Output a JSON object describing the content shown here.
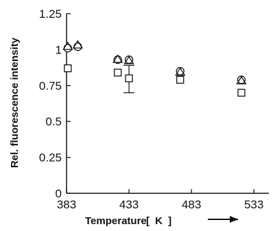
{
  "chart_data": {
    "type": "scatter",
    "title": "",
    "xlabel": "Temperature",
    "xunit": "[ K ]",
    "ylabel": "Rel.  fluorescence  intensity",
    "xlim": [
      383,
      545
    ],
    "ylim": [
      0,
      1.25
    ],
    "xticks": [
      383,
      433,
      483,
      533
    ],
    "xtick_labels": [
      "383",
      "433",
      "483",
      "533"
    ],
    "yticks": [
      0,
      0.25,
      0.5,
      0.75,
      1,
      1.25
    ],
    "ytick_labels": [
      "0",
      "0.25",
      "0.5",
      "0.75",
      "1",
      "1.25"
    ],
    "grid": false,
    "legend": "none",
    "series": [
      {
        "marker": "circle",
        "points": [
          {
            "x": 384,
            "y": 1.01
          },
          {
            "x": 392,
            "y": 1.02
          },
          {
            "x": 424,
            "y": 0.93
          },
          {
            "x": 433,
            "y": 0.93
          },
          {
            "x": 474,
            "y": 0.85
          },
          {
            "x": 523,
            "y": 0.79
          }
        ]
      },
      {
        "marker": "triangle",
        "points": [
          {
            "x": 384,
            "y": 1.02
          },
          {
            "x": 392,
            "y": 1.03
          },
          {
            "x": 424,
            "y": 0.93
          },
          {
            "x": 433,
            "y": 0.92
          },
          {
            "x": 474,
            "y": 0.84
          },
          {
            "x": 523,
            "y": 0.78
          }
        ]
      },
      {
        "marker": "square",
        "points": [
          {
            "x": 384,
            "y": 0.87
          },
          {
            "x": 424,
            "y": 0.84
          },
          {
            "x": 433,
            "y": 0.8,
            "yerr": [
              0.7,
              0.89
            ]
          },
          {
            "x": 474,
            "y": 0.79
          },
          {
            "x": 523,
            "y": 0.7
          }
        ]
      }
    ]
  }
}
